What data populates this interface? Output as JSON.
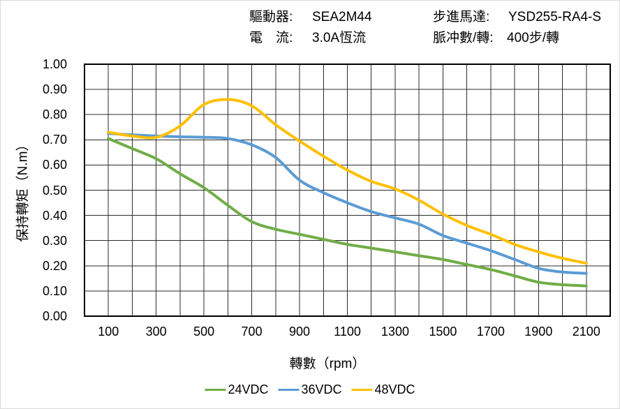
{
  "header": {
    "driver_label": "驅動器:",
    "driver_value": "SEA2M44",
    "current_label": "電　流:",
    "current_value": "3.0A恆流",
    "motor_label": "步進馬達:",
    "motor_value": "YSD255-RA4-S",
    "pulses_label": "脈冲數/轉:",
    "pulses_value": "400步/轉"
  },
  "chart_data": {
    "type": "line",
    "title": "",
    "xlabel": "轉數（rpm）",
    "ylabel": "保持轉矩（N.m）",
    "xlim": [
      0,
      2200
    ],
    "ylim": [
      0,
      1.0
    ],
    "x_grid_step": 100,
    "y_grid_step": 0.1,
    "grid": true,
    "legend_position": "bottom",
    "x_ticks": [
      100,
      300,
      500,
      700,
      900,
      1100,
      1300,
      1500,
      1700,
      1900,
      2100
    ],
    "y_ticks": [
      "1.00",
      "0.90",
      "0.80",
      "0.70",
      "0.60",
      "0.50",
      "0.40",
      "0.30",
      "0.20",
      "0.10",
      "0.00"
    ],
    "x": [
      100,
      200,
      300,
      400,
      500,
      600,
      700,
      800,
      900,
      1000,
      1100,
      1200,
      1300,
      1400,
      1500,
      1600,
      1700,
      1800,
      1900,
      2000,
      2100
    ],
    "series": [
      {
        "name": "24VDC",
        "color": "#70AD47",
        "values": [
          0.705,
          0.665,
          0.625,
          0.565,
          0.51,
          0.44,
          0.375,
          0.345,
          0.325,
          0.305,
          0.285,
          0.27,
          0.255,
          0.24,
          0.225,
          0.205,
          0.185,
          0.16,
          0.135,
          0.125,
          0.12
        ]
      },
      {
        "name": "36VDC",
        "color": "#5B9BD5",
        "values": [
          0.725,
          0.72,
          0.715,
          0.712,
          0.71,
          0.705,
          0.68,
          0.63,
          0.54,
          0.49,
          0.45,
          0.415,
          0.39,
          0.365,
          0.32,
          0.29,
          0.26,
          0.225,
          0.19,
          0.175,
          0.17
        ]
      },
      {
        "name": "48VDC",
        "color": "#FFC000",
        "values": [
          0.73,
          0.715,
          0.71,
          0.755,
          0.84,
          0.86,
          0.835,
          0.76,
          0.695,
          0.635,
          0.58,
          0.535,
          0.505,
          0.46,
          0.405,
          0.36,
          0.325,
          0.285,
          0.255,
          0.23,
          0.21
        ]
      }
    ],
    "grid_color": "#2b2b2b",
    "border_color": "#000000"
  }
}
